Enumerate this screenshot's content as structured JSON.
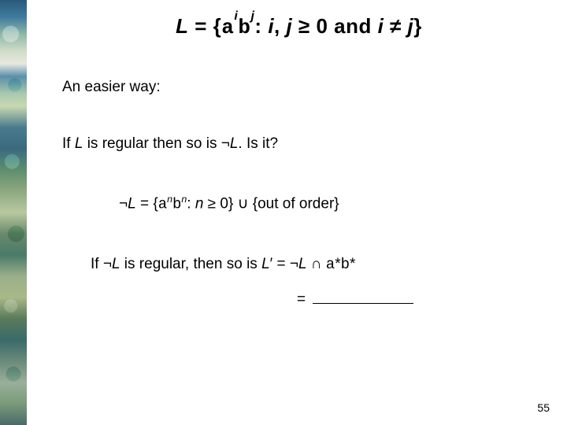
{
  "title": {
    "L": "L",
    "eq": " = {",
    "a": "a",
    "sup_i": "i",
    "b": "b",
    "sup_j": "j",
    "colon": ": ",
    "i": "i",
    "comma": ", ",
    "j": "j",
    "ge": " ≥ 0 and ",
    "i2": "i",
    "ne": " ≠ ",
    "j2": "j",
    "close": "}"
  },
  "lines": {
    "easier": "An easier way:",
    "l2_a": "If ",
    "l2_L": "L",
    "l2_b": " is regular then so is ",
    "l2_not": "¬",
    "l2_L2": "L",
    "l2_c": ".  Is it?",
    "l3_not": "¬",
    "l3_L": "L",
    "l3_eq": " = {",
    "l3_a": "a",
    "l3_supn1": "n",
    "l3_b": "b",
    "l3_supn2": "n",
    "l3_colon": ": ",
    "l3_nvar": "n",
    "l3_rest": " ≥ 0} ∪ {out of order}",
    "l4_a": "If ",
    "l4_not": "¬",
    "l4_L": "L",
    "l4_b": " is regular, then so is ",
    "l4_L2": "L",
    "l4_prime": "′ = ",
    "l4_not2": "¬",
    "l4_L3": "L",
    "l4_cap": "  ∩ ",
    "l4_astar": "a",
    "l4_star1": "*",
    "l4_bstar": "b",
    "l4_star2": "*",
    "l5_eq": "= "
  },
  "page": "55",
  "colors": {
    "text": "#000000",
    "background": "#ffffff"
  }
}
